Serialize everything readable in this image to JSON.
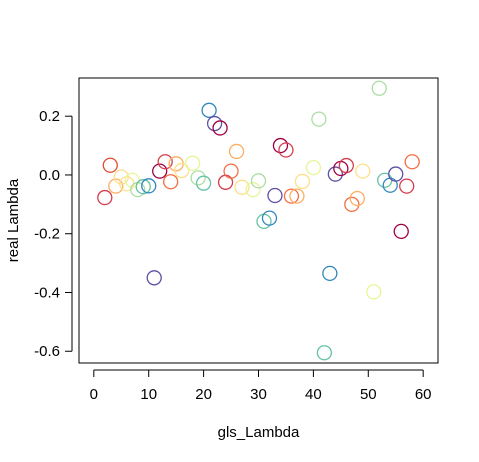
{
  "chart_data": {
    "type": "scatter",
    "title": "",
    "xlabel": "gls_Lambda",
    "ylabel": "real Lambda",
    "xlim": [
      -2.7,
      62.7
    ],
    "ylim": [
      -0.64,
      0.33
    ],
    "xticks": [
      0,
      10,
      20,
      30,
      40,
      50,
      60
    ],
    "xtick_labels": [
      "0",
      "10",
      "20",
      "30",
      "40",
      "50",
      "60"
    ],
    "yticks": [
      -0.6,
      -0.4,
      -0.2,
      0.0,
      0.2
    ],
    "ytick_labels": [
      "-0.6",
      "-0.4",
      "-0.2",
      "0.0",
      "0.2"
    ],
    "grid": false,
    "legend": "none",
    "marker": "open-circle",
    "points": [
      {
        "x": 2,
        "y": -0.077,
        "color": "#d53e4f"
      },
      {
        "x": 3,
        "y": 0.033,
        "color": "#e34a33"
      },
      {
        "x": 4,
        "y": -0.038,
        "color": "#fdae61"
      },
      {
        "x": 5,
        "y": -0.007,
        "color": "#fee08b"
      },
      {
        "x": 6,
        "y": -0.03,
        "color": "#fee08b"
      },
      {
        "x": 7,
        "y": -0.018,
        "color": "#e6f598"
      },
      {
        "x": 8,
        "y": -0.05,
        "color": "#abdda4"
      },
      {
        "x": 9,
        "y": -0.04,
        "color": "#66c2a5"
      },
      {
        "x": 10,
        "y": -0.037,
        "color": "#3288bd"
      },
      {
        "x": 11,
        "y": -0.35,
        "color": "#5e4fa2"
      },
      {
        "x": 12,
        "y": 0.013,
        "color": "#9e0142"
      },
      {
        "x": 13,
        "y": 0.045,
        "color": "#d53e4f"
      },
      {
        "x": 14,
        "y": -0.023,
        "color": "#f46d43"
      },
      {
        "x": 15,
        "y": 0.038,
        "color": "#fdae61"
      },
      {
        "x": 16,
        "y": 0.015,
        "color": "#fee08b"
      },
      {
        "x": 18,
        "y": 0.04,
        "color": "#e6f598"
      },
      {
        "x": 19,
        "y": -0.01,
        "color": "#abdda4"
      },
      {
        "x": 20,
        "y": -0.028,
        "color": "#66c2a5"
      },
      {
        "x": 21,
        "y": 0.22,
        "color": "#3288bd"
      },
      {
        "x": 22,
        "y": 0.175,
        "color": "#5e4fa2"
      },
      {
        "x": 23,
        "y": 0.16,
        "color": "#9e0142"
      },
      {
        "x": 24,
        "y": -0.025,
        "color": "#d53e4f"
      },
      {
        "x": 25,
        "y": 0.013,
        "color": "#f46d43"
      },
      {
        "x": 26,
        "y": 0.08,
        "color": "#fdae61"
      },
      {
        "x": 27,
        "y": -0.042,
        "color": "#fee08b"
      },
      {
        "x": 29,
        "y": -0.05,
        "color": "#e6f598"
      },
      {
        "x": 30,
        "y": -0.02,
        "color": "#abdda4"
      },
      {
        "x": 31,
        "y": -0.158,
        "color": "#66c2a5"
      },
      {
        "x": 32,
        "y": -0.147,
        "color": "#3288bd"
      },
      {
        "x": 33,
        "y": -0.07,
        "color": "#5e4fa2"
      },
      {
        "x": 34,
        "y": 0.1,
        "color": "#9e0142"
      },
      {
        "x": 35,
        "y": 0.085,
        "color": "#d53e4f"
      },
      {
        "x": 36,
        "y": -0.072,
        "color": "#f46d43"
      },
      {
        "x": 37,
        "y": -0.072,
        "color": "#fdae61"
      },
      {
        "x": 38,
        "y": -0.022,
        "color": "#fee08b"
      },
      {
        "x": 40,
        "y": 0.025,
        "color": "#e6f598"
      },
      {
        "x": 41,
        "y": 0.19,
        "color": "#abdda4"
      },
      {
        "x": 42,
        "y": -0.605,
        "color": "#66c2a5"
      },
      {
        "x": 43,
        "y": -0.335,
        "color": "#3288bd"
      },
      {
        "x": 44,
        "y": 0.003,
        "color": "#5e4fa2"
      },
      {
        "x": 45,
        "y": 0.022,
        "color": "#9e0142"
      },
      {
        "x": 46,
        "y": 0.032,
        "color": "#d53e4f"
      },
      {
        "x": 47,
        "y": -0.1,
        "color": "#f46d43"
      },
      {
        "x": 48,
        "y": -0.08,
        "color": "#fdae61"
      },
      {
        "x": 49,
        "y": 0.013,
        "color": "#fee08b"
      },
      {
        "x": 51,
        "y": -0.398,
        "color": "#e6f598"
      },
      {
        "x": 52,
        "y": 0.295,
        "color": "#abdda4"
      },
      {
        "x": 53,
        "y": -0.018,
        "color": "#66c2a5"
      },
      {
        "x": 54,
        "y": -0.035,
        "color": "#3288bd"
      },
      {
        "x": 55,
        "y": 0.003,
        "color": "#5e4fa2"
      },
      {
        "x": 56,
        "y": -0.192,
        "color": "#9e0142"
      },
      {
        "x": 57,
        "y": -0.038,
        "color": "#d53e4f"
      },
      {
        "x": 58,
        "y": 0.045,
        "color": "#f46d43"
      }
    ]
  }
}
